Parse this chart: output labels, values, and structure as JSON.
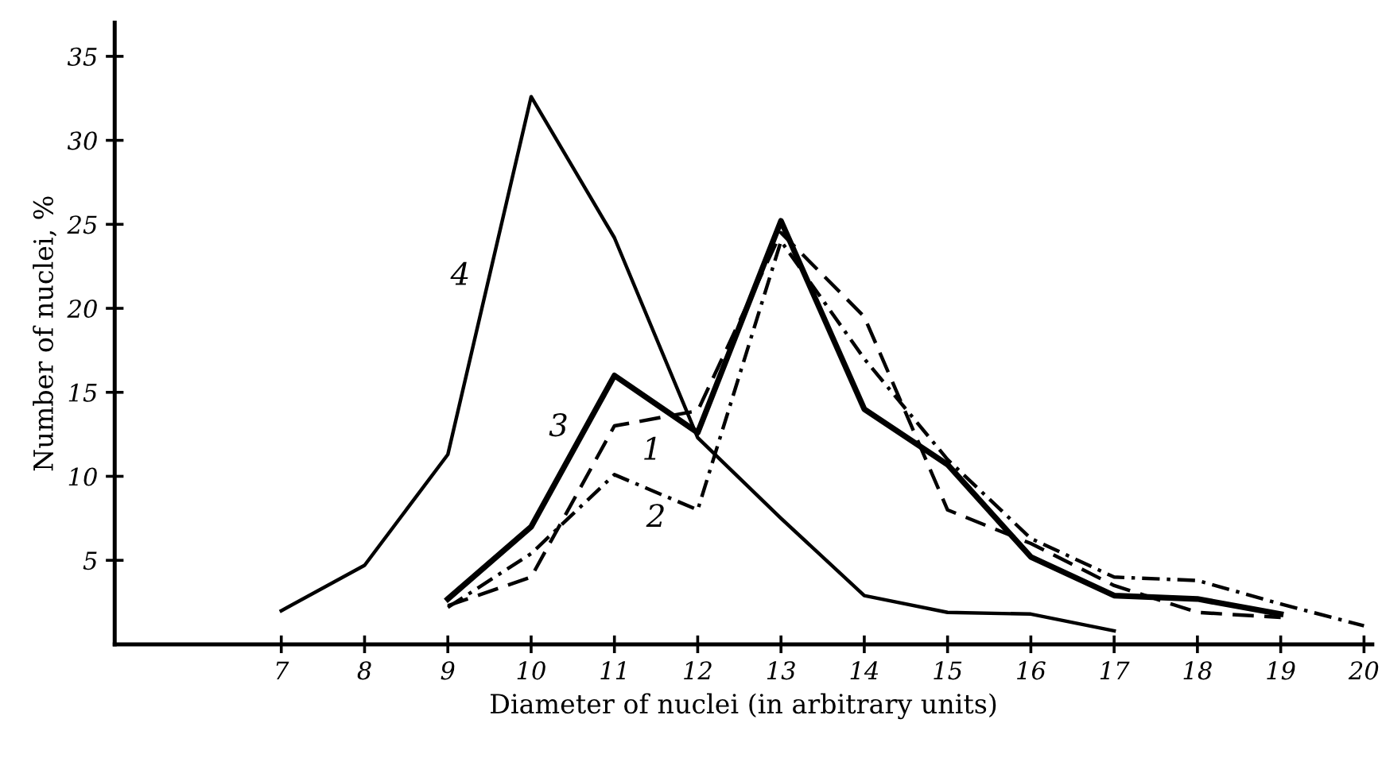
{
  "chart_data": {
    "type": "line",
    "xlabel": "Diameter of nuclei (in arbitrary units)",
    "ylabel": "Number of nuclei, %",
    "xlim": [
      5,
      20.1
    ],
    "ylim": [
      0,
      37
    ],
    "xticks": [
      7,
      8,
      9,
      10,
      11,
      12,
      13,
      14,
      15,
      16,
      17,
      18,
      19,
      20
    ],
    "yticks": [
      5,
      10,
      15,
      20,
      25,
      30,
      35
    ],
    "grid": false,
    "legend": false,
    "marker": "none",
    "series": [
      {
        "name": "1",
        "color": "#000000",
        "line_style": "dashed",
        "x": [
          9,
          10,
          11,
          12,
          13,
          14,
          15,
          16,
          17,
          18,
          19
        ],
        "values": [
          2.3,
          4,
          13,
          13.9,
          24.5,
          19.5,
          8,
          6,
          3.5,
          1.9,
          1.6
        ]
      },
      {
        "name": "2",
        "color": "#000000",
        "line_style": "dashdot",
        "x": [
          9,
          10,
          11,
          12,
          13,
          14,
          15,
          16,
          17,
          18,
          19,
          20
        ],
        "values": [
          2.2,
          5.4,
          10.1,
          8,
          24,
          17,
          11,
          6.3,
          4,
          3.8,
          2.4,
          1.1
        ]
      },
      {
        "name": "3",
        "color": "#000000",
        "line_style": "solid",
        "x": [
          9,
          10,
          11,
          12,
          13,
          14,
          15,
          16,
          17,
          18,
          19
        ],
        "values": [
          2.7,
          7,
          16,
          12.6,
          25.2,
          14,
          10.7,
          5.2,
          2.9,
          2.7,
          1.8
        ]
      },
      {
        "name": "4",
        "color": "#000000",
        "line_style": "solid",
        "x": [
          7,
          8,
          9,
          10,
          11,
          12,
          13,
          14,
          15,
          16,
          17
        ],
        "values": [
          2,
          4.7,
          11.3,
          32.6,
          24.2,
          12.3,
          7.5,
          2.9,
          1.9,
          1.8,
          0.8
        ]
      }
    ]
  }
}
